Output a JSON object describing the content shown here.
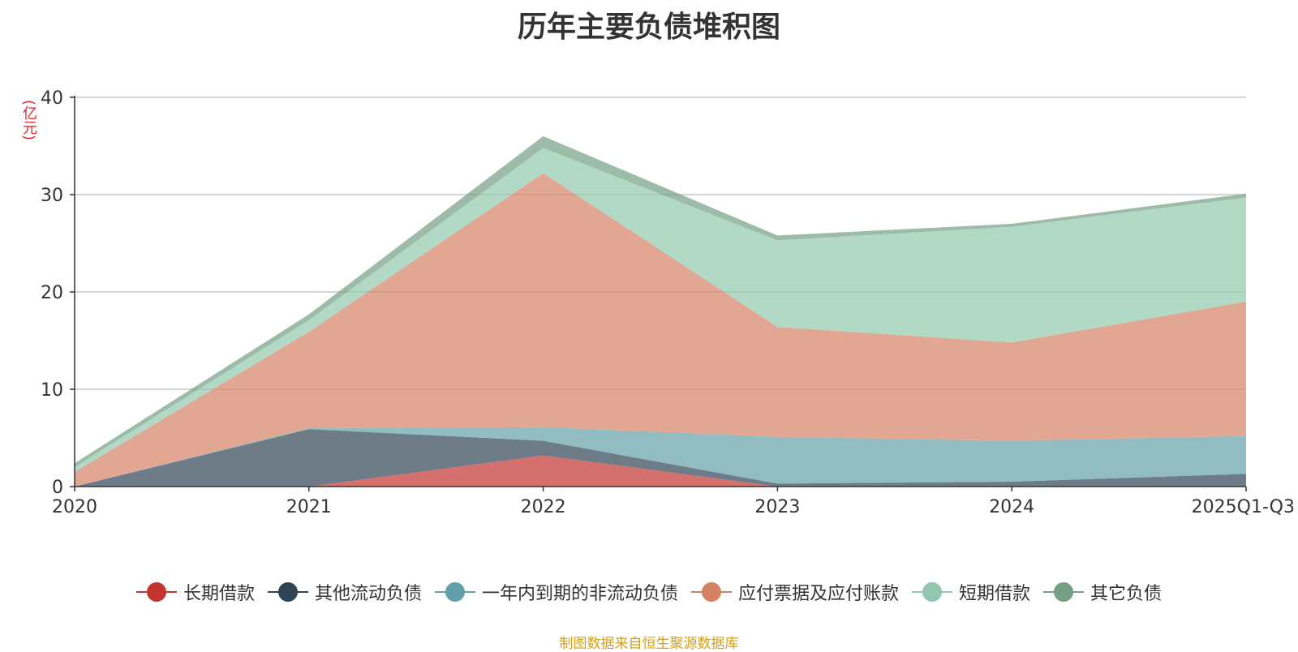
{
  "chart_data": {
    "type": "area",
    "stacked": true,
    "title": "历年主要负债堆积图",
    "unit_label": "(亿元)",
    "categories": [
      "2020",
      "2021",
      "2022",
      "2023",
      "2024",
      "2025Q1-Q3"
    ],
    "ylim": [
      0,
      40
    ],
    "yticks": [
      0,
      10,
      20,
      30,
      40
    ],
    "grid": true,
    "legend_position": "bottom",
    "series": [
      {
        "name": "长期借款",
        "color": "#c23531",
        "values": [
          0,
          0,
          3.2,
          0,
          0,
          0
        ]
      },
      {
        "name": "其他流动负债",
        "color": "#2f4554",
        "values": [
          0,
          5.9,
          1.5,
          0.3,
          0.5,
          1.3
        ]
      },
      {
        "name": "一年内到期的非流动负债",
        "color": "#61a0a8",
        "values": [
          0,
          0.1,
          1.4,
          4.8,
          4.2,
          3.9
        ]
      },
      {
        "name": "应付票据及应付账款",
        "color": "#d48265",
        "values": [
          1.5,
          9.9,
          26.1,
          11.3,
          10.1,
          13.8
        ]
      },
      {
        "name": "短期借款",
        "color": "#91c7ae",
        "values": [
          0.5,
          1.2,
          2.6,
          8.9,
          11.9,
          10.7
        ]
      },
      {
        "name": "其它负债",
        "color": "#749f83",
        "values": [
          0.4,
          0.6,
          1.2,
          0.5,
          0.3,
          0.4
        ]
      }
    ]
  },
  "source_note": "制图数据来自恒生聚源数据库"
}
